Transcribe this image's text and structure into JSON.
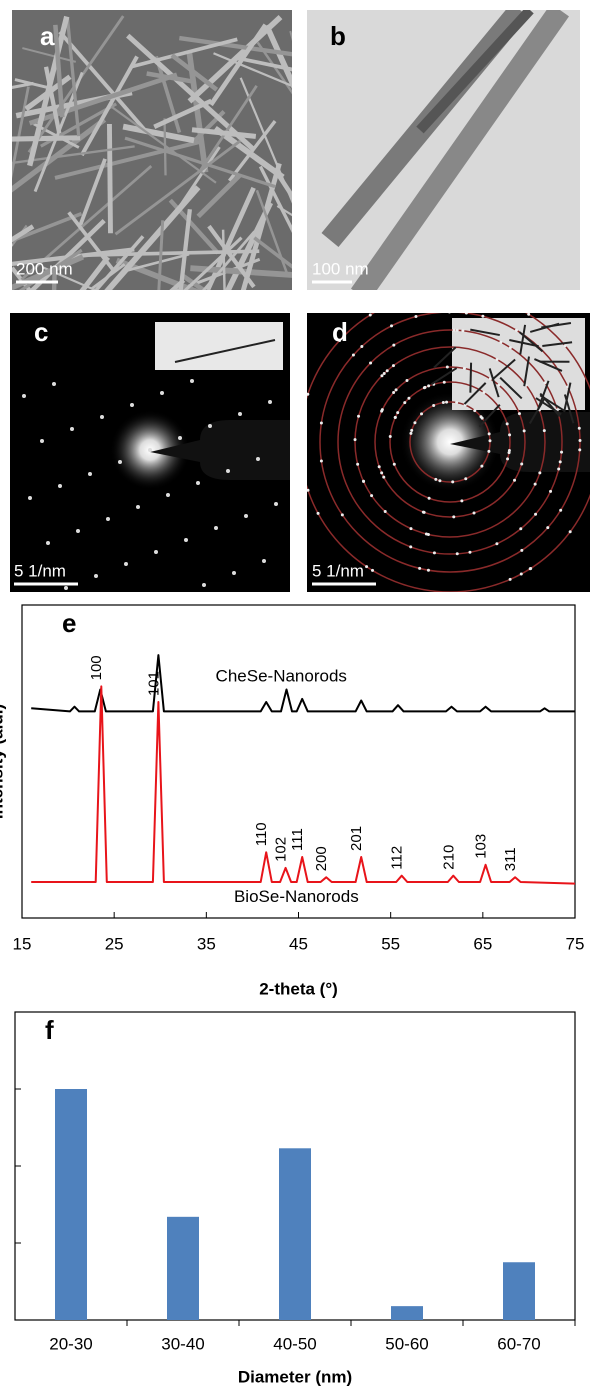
{
  "panels": [
    {
      "label": "a",
      "scale_bar": "200 nm"
    },
    {
      "label": "b",
      "scale_bar": "100 nm"
    },
    {
      "label": "c",
      "scale_bar": "5 1/nm"
    },
    {
      "label": "d",
      "scale_bar": "5 1/nm"
    }
  ],
  "chart_data": [
    {
      "type": "line",
      "label": "e",
      "y_label": "Intensity (a.u.)",
      "x_label": "2-theta (°)",
      "xlim": [
        15,
        75
      ],
      "xticks": [
        15,
        25,
        35,
        45,
        55,
        65,
        75
      ],
      "ylim": [
        0,
        100
      ],
      "series": [
        {
          "name": "CheSe-Nanorods",
          "color": "#000000",
          "x": [
            16,
            20.2,
            20.7,
            21.2,
            22.9,
            23.5,
            24.1,
            29.2,
            29.8,
            30.4,
            40.9,
            41.5,
            42.1,
            43.1,
            43.7,
            44.3,
            44.8,
            45.4,
            46.0,
            51.2,
            51.8,
            52.4,
            55.2,
            55.8,
            56.4,
            61.0,
            61.6,
            62.2,
            64.7,
            65.3,
            65.9,
            71.2,
            71.7,
            72.2,
            75
          ],
          "values": [
            67,
            66,
            67.5,
            66,
            66,
            73,
            66,
            66,
            84,
            66,
            66,
            69,
            66,
            66,
            73,
            66,
            66,
            70,
            66,
            66,
            69.5,
            66,
            66,
            68,
            66,
            66,
            67.5,
            66,
            66,
            67.5,
            66,
            66,
            67,
            66,
            66
          ]
        },
        {
          "name": "BioSe-Nanorods",
          "color": "#e8141a",
          "x": [
            16,
            23.0,
            23.6,
            24.2,
            29.2,
            29.8,
            30.4,
            40.9,
            41.5,
            42.1,
            43.0,
            43.6,
            44.2,
            44.8,
            45.4,
            46.0,
            47.4,
            48.0,
            48.6,
            51.2,
            51.8,
            52.4,
            55.6,
            56.2,
            56.8,
            61.2,
            61.8,
            62.4,
            64.7,
            65.3,
            65.9,
            67.9,
            68.5,
            69.1,
            75
          ],
          "values": [
            11.5,
            11.5,
            74,
            11.5,
            11.5,
            69,
            11.5,
            11.5,
            21,
            11.5,
            11.5,
            16,
            11.5,
            11.5,
            19.5,
            11.5,
            11.5,
            13,
            11.5,
            11.5,
            19.5,
            11.5,
            11.5,
            13.5,
            11.5,
            11.5,
            13.5,
            11.5,
            11.5,
            17,
            11.5,
            11.5,
            13,
            11.5,
            11
          ]
        }
      ],
      "annotations": [
        {
          "text": "100",
          "x": 23.6
        },
        {
          "text": "101",
          "x": 29.8
        },
        {
          "text": "110",
          "x": 41.5
        },
        {
          "text": "102",
          "x": 43.6
        },
        {
          "text": "111",
          "x": 45.4
        },
        {
          "text": "200",
          "x": 48.0
        },
        {
          "text": "201",
          "x": 51.8
        },
        {
          "text": "112",
          "x": 56.2
        },
        {
          "text": "210",
          "x": 61.8
        },
        {
          "text": "103",
          "x": 65.3
        },
        {
          "text": "311",
          "x": 68.5
        }
      ]
    },
    {
      "type": "bar",
      "label": "f",
      "x_label": "Diameter (nm)",
      "color": "#4f81bd",
      "categories": [
        "20-30",
        "30-40",
        "40-50",
        "50-60",
        "60-70"
      ],
      "values": [
        30,
        13.4,
        22.3,
        1.8,
        7.5
      ],
      "ylim": [
        0,
        40
      ],
      "yticks": [
        0,
        10,
        20,
        30,
        40
      ]
    }
  ]
}
